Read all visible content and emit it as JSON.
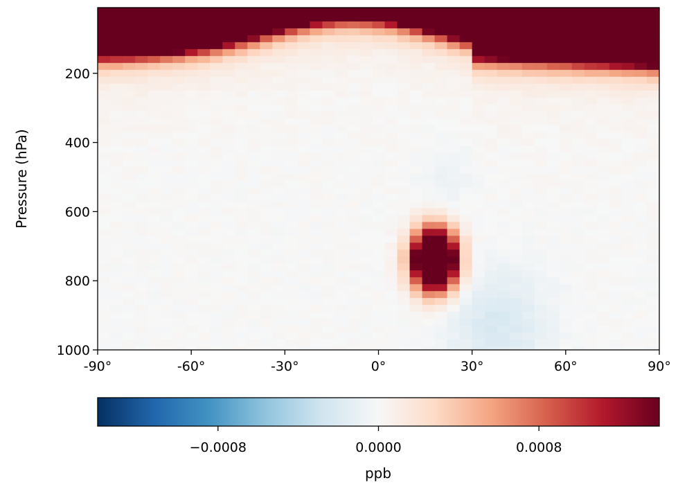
{
  "chart_data": {
    "type": "heatmap",
    "title": "",
    "xlabel": "",
    "ylabel": "Pressure (hPa)",
    "xlim": [
      -90,
      90
    ],
    "ylim": [
      1000,
      10
    ],
    "y_inverted": true,
    "x_ticks": [
      -90,
      -60,
      -30,
      0,
      30,
      60,
      90
    ],
    "x_tick_labels": [
      "-90°",
      "-60°",
      "-30°",
      "0°",
      "30°",
      "60°",
      "90°"
    ],
    "y_ticks": [
      200,
      400,
      600,
      800,
      1000
    ],
    "y_tick_labels": [
      "200",
      "400",
      "600",
      "800",
      "1000"
    ],
    "grid": false,
    "grid_resolution": {
      "lat_step_deg": 4,
      "pressure_step_hPa": 20
    },
    "colormap": "RdBu_r",
    "color_stops": [
      "#053061",
      "#2166ac",
      "#4393c3",
      "#92c5de",
      "#d1e5f0",
      "#f7f7f7",
      "#fddbc7",
      "#f4a582",
      "#d6604d",
      "#b2182b",
      "#67001f"
    ],
    "colorbar": {
      "orientation": "horizontal",
      "position": "bottom",
      "label": "ppb",
      "range": [
        -0.0014,
        0.0014
      ],
      "ticks": [
        -0.0008,
        0.0,
        0.0008
      ],
      "tick_labels": [
        "−0.0008",
        "0.0000",
        "0.0008"
      ]
    },
    "features": [
      {
        "description": "strong positive band near top of atmosphere",
        "pressure_range_hPa": [
          10,
          200
        ],
        "lat_range": [
          -90,
          90
        ],
        "peak_value": 0.0014
      },
      {
        "description": "strong positive plume",
        "pressure_range_hPa": [
          640,
          860
        ],
        "lat_range": [
          10,
          26
        ],
        "peak_value": 0.0014
      },
      {
        "description": "weak negative anomaly",
        "pressure_range_hPa": [
          560,
          1000
        ],
        "lat_range": [
          10,
          60
        ],
        "min_value": -0.0002
      }
    ]
  }
}
